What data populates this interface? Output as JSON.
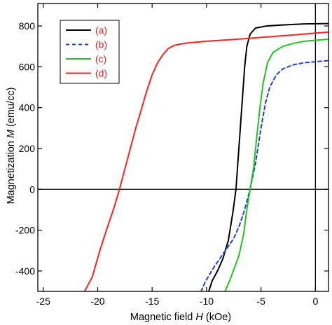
{
  "chart_data": {
    "type": "line",
    "xlabel_parts": [
      "Magnetic field ",
      "H",
      " (kOe)"
    ],
    "ylabel_parts": [
      "Magnetization ",
      "M",
      " (emu/cc)"
    ],
    "xlim": [
      -25.5,
      1.2
    ],
    "ylim": [
      -500,
      910
    ],
    "x_ticks": [
      -25,
      -20,
      -15,
      -10,
      -5,
      0
    ],
    "y_ticks": [
      -400,
      -200,
      0,
      200,
      400,
      600,
      800
    ],
    "zero_lines": true,
    "legend_position": "top-left",
    "series": [
      {
        "name": "(a)",
        "color": "#000000",
        "dash": "solid",
        "points": [
          [
            -9.8,
            -500
          ],
          [
            -9.5,
            -450
          ],
          [
            -9.0,
            -400
          ],
          [
            -8.5,
            -340
          ],
          [
            -8.0,
            -250
          ],
          [
            -7.6,
            -120
          ],
          [
            -7.3,
            0
          ],
          [
            -7.1,
            150
          ],
          [
            -6.9,
            300
          ],
          [
            -6.7,
            450
          ],
          [
            -6.5,
            600
          ],
          [
            -6.3,
            700
          ],
          [
            -6.0,
            760
          ],
          [
            -5.5,
            790
          ],
          [
            -4.5,
            800
          ],
          [
            -3,
            805
          ],
          [
            -1,
            810
          ],
          [
            1.2,
            812
          ]
        ]
      },
      {
        "name": "(b)",
        "color": "#1f3fd6",
        "dash": "5,4",
        "points": [
          [
            -10.5,
            -500
          ],
          [
            -10.1,
            -450
          ],
          [
            -9.3,
            -380
          ],
          [
            -8.4,
            -310
          ],
          [
            -7.5,
            -240
          ],
          [
            -7.0,
            -180
          ],
          [
            -6.5,
            -100
          ],
          [
            -6.0,
            0
          ],
          [
            -5.5,
            130
          ],
          [
            -5.0,
            300
          ],
          [
            -4.6,
            420
          ],
          [
            -4.2,
            500
          ],
          [
            -3.6,
            560
          ],
          [
            -3.0,
            590
          ],
          [
            -2,
            610
          ],
          [
            -1,
            620
          ],
          [
            0,
            625
          ],
          [
            1.2,
            630
          ]
        ]
      },
      {
        "name": "(c)",
        "color": "#22c322",
        "dash": "solid",
        "points": [
          [
            -8.3,
            -500
          ],
          [
            -7.9,
            -450
          ],
          [
            -7.4,
            -380
          ],
          [
            -7.0,
            -320
          ],
          [
            -6.6,
            -220
          ],
          [
            -6.3,
            -100
          ],
          [
            -6.0,
            0
          ],
          [
            -5.7,
            100
          ],
          [
            -5.4,
            250
          ],
          [
            -5.1,
            400
          ],
          [
            -4.8,
            520
          ],
          [
            -4.4,
            620
          ],
          [
            -3.9,
            670
          ],
          [
            -3.0,
            700
          ],
          [
            -2,
            715
          ],
          [
            -1,
            725
          ],
          [
            0,
            730
          ],
          [
            1.2,
            735
          ]
        ]
      },
      {
        "name": "(d)",
        "color": "#ff2020",
        "dash": "solid",
        "points": [
          [
            -21.2,
            -500
          ],
          [
            -20.5,
            -430
          ],
          [
            -19.8,
            -300
          ],
          [
            -19.2,
            -200
          ],
          [
            -18.5,
            -90
          ],
          [
            -18.0,
            0
          ],
          [
            -17.5,
            100
          ],
          [
            -17.0,
            200
          ],
          [
            -16.5,
            300
          ],
          [
            -16.0,
            390
          ],
          [
            -15.5,
            480
          ],
          [
            -15.0,
            560
          ],
          [
            -14.5,
            620
          ],
          [
            -14.0,
            660
          ],
          [
            -13.5,
            690
          ],
          [
            -13.0,
            705
          ],
          [
            -12,
            715
          ],
          [
            -10,
            725
          ],
          [
            -8,
            732
          ],
          [
            -6,
            740
          ],
          [
            -4,
            748
          ],
          [
            -2,
            756
          ],
          [
            0,
            765
          ],
          [
            1.2,
            770
          ]
        ]
      }
    ]
  }
}
